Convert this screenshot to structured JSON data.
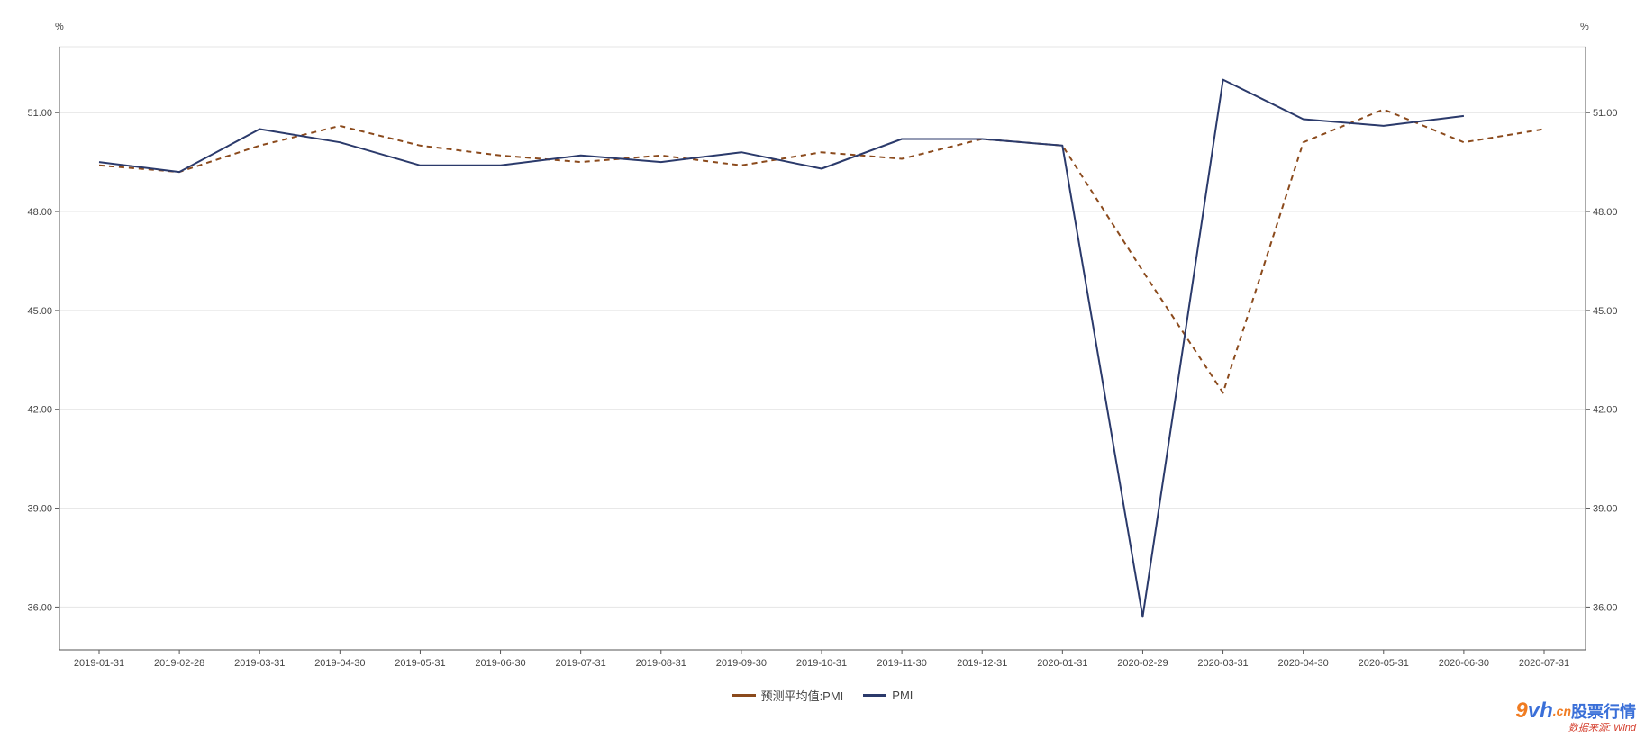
{
  "chart_data": {
    "type": "line",
    "categories": [
      "2019-01-31",
      "2019-02-28",
      "2019-03-31",
      "2019-04-30",
      "2019-05-31",
      "2019-06-30",
      "2019-07-31",
      "2019-08-31",
      "2019-09-30",
      "2019-10-31",
      "2019-11-30",
      "2019-12-31",
      "2020-01-31",
      "2020-02-29",
      "2020-03-31",
      "2020-04-30",
      "2020-05-31",
      "2020-06-30",
      "2020-07-31"
    ],
    "series": [
      {
        "name": "预测平均值:PMI",
        "color": "#8b4a1c",
        "dash": true,
        "values": [
          49.4,
          49.2,
          50.0,
          50.6,
          50.0,
          49.7,
          49.5,
          49.7,
          49.4,
          49.8,
          49.6,
          50.2,
          50.0,
          46.2,
          42.5,
          50.1,
          51.1,
          50.1,
          50.5
        ]
      },
      {
        "name": "PMI",
        "color": "#2b3a6b",
        "dash": false,
        "values": [
          49.5,
          49.2,
          50.5,
          50.1,
          49.4,
          49.4,
          49.7,
          49.5,
          49.8,
          49.3,
          50.2,
          50.2,
          50.0,
          35.7,
          52.0,
          50.8,
          50.6,
          50.9,
          null
        ]
      }
    ],
    "y_unit_left": "%",
    "y_unit_right": "%",
    "ylim": [
      34.7,
      53.0
    ],
    "yticks": [
      "36.00",
      "39.00",
      "42.00",
      "45.00",
      "48.00",
      "51.00"
    ],
    "grid": true,
    "legend_position": "bottom-center"
  },
  "watermark": {
    "logo_9": "9",
    "logo_vh": "vh",
    "logo_cn": ".cn",
    "logo_text": "股票行情",
    "source": "数据来源: Wind"
  }
}
